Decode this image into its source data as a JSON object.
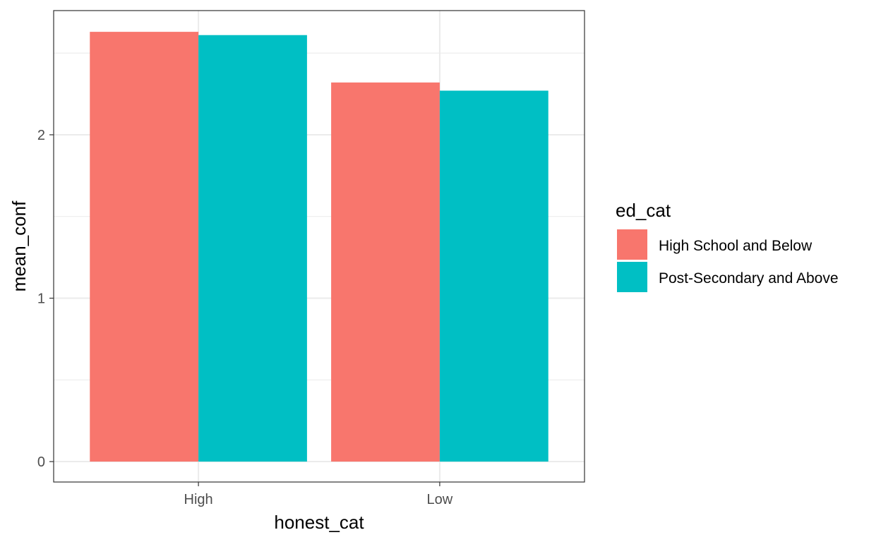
{
  "chart_data": {
    "type": "bar",
    "categories": [
      "High",
      "Low"
    ],
    "series": [
      {
        "name": "High School and Below",
        "values": [
          2.63,
          2.32
        ],
        "color": "#F8766D"
      },
      {
        "name": "Post-Secondary and Above",
        "values": [
          2.61,
          2.27
        ],
        "color": "#00BFC4"
      }
    ],
    "xlabel": "honest_cat",
    "ylabel": "mean_conf",
    "yticks": [
      "0",
      "1",
      "2"
    ],
    "ylim": [
      -0.125,
      2.76
    ],
    "legend_title": "ed_cat",
    "legend_position": "right",
    "grid": true,
    "theme": "bw"
  }
}
